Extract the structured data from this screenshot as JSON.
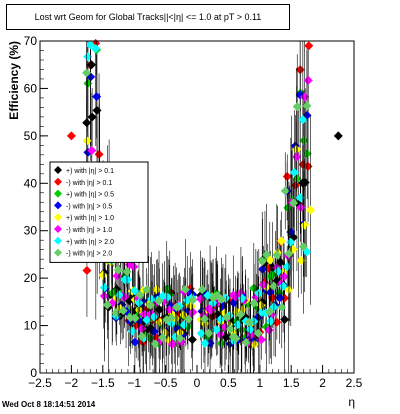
{
  "chart_data": {
    "type": "scatter",
    "title": "Lost wrt Geom for Global Tracks|",
    "title_overlap": "|<|η| <= 1.0 at pT > 0.11",
    "xlabel": "η",
    "ylabel": "Efficiency (%)",
    "xlim": [
      -2.5,
      2.5
    ],
    "ylim": [
      0,
      70
    ],
    "x_ticks": [
      "−2.5",
      "−2",
      "−1.5",
      "−1",
      "−0.5",
      "0",
      "0.5",
      "1",
      "1.5",
      "2",
      "2.5"
    ],
    "y_ticks": [
      "0",
      "10",
      "20",
      "30",
      "40",
      "50",
      "60",
      "70"
    ],
    "grid": false,
    "legend_position": "left-middle",
    "series": [
      {
        "name": "+) with |η| > 0.1",
        "color": "#000000"
      },
      {
        "name": "-) with |η| > 0.1",
        "color": "#ff0000"
      },
      {
        "name": "+) with |η| > 0.5",
        "color": "#00cc00"
      },
      {
        "name": "-) with |η| > 0.5",
        "color": "#0000ff"
      },
      {
        "name": "+) with |η| > 1.0",
        "color": "#ffff00"
      },
      {
        "name": "-) with |η| > 1.0",
        "color": "#ff00ff"
      },
      {
        "name": "+) with |η| > 2.0",
        "color": "#00ffff"
      },
      {
        "name": "-) with |η| > 2.0",
        "color": "#66cc66"
      }
    ],
    "notable_points": [
      {
        "series": 1,
        "x": -2.0,
        "y": 50
      },
      {
        "series": 0,
        "x": 2.25,
        "y": 50
      },
      {
        "series": 0,
        "x": -1.68,
        "y": 65
      },
      {
        "series": 1,
        "x": 1.78,
        "y": 69
      }
    ]
  },
  "footer": {
    "timestamp": "Wed Oct  8 18:14:51 2014"
  }
}
